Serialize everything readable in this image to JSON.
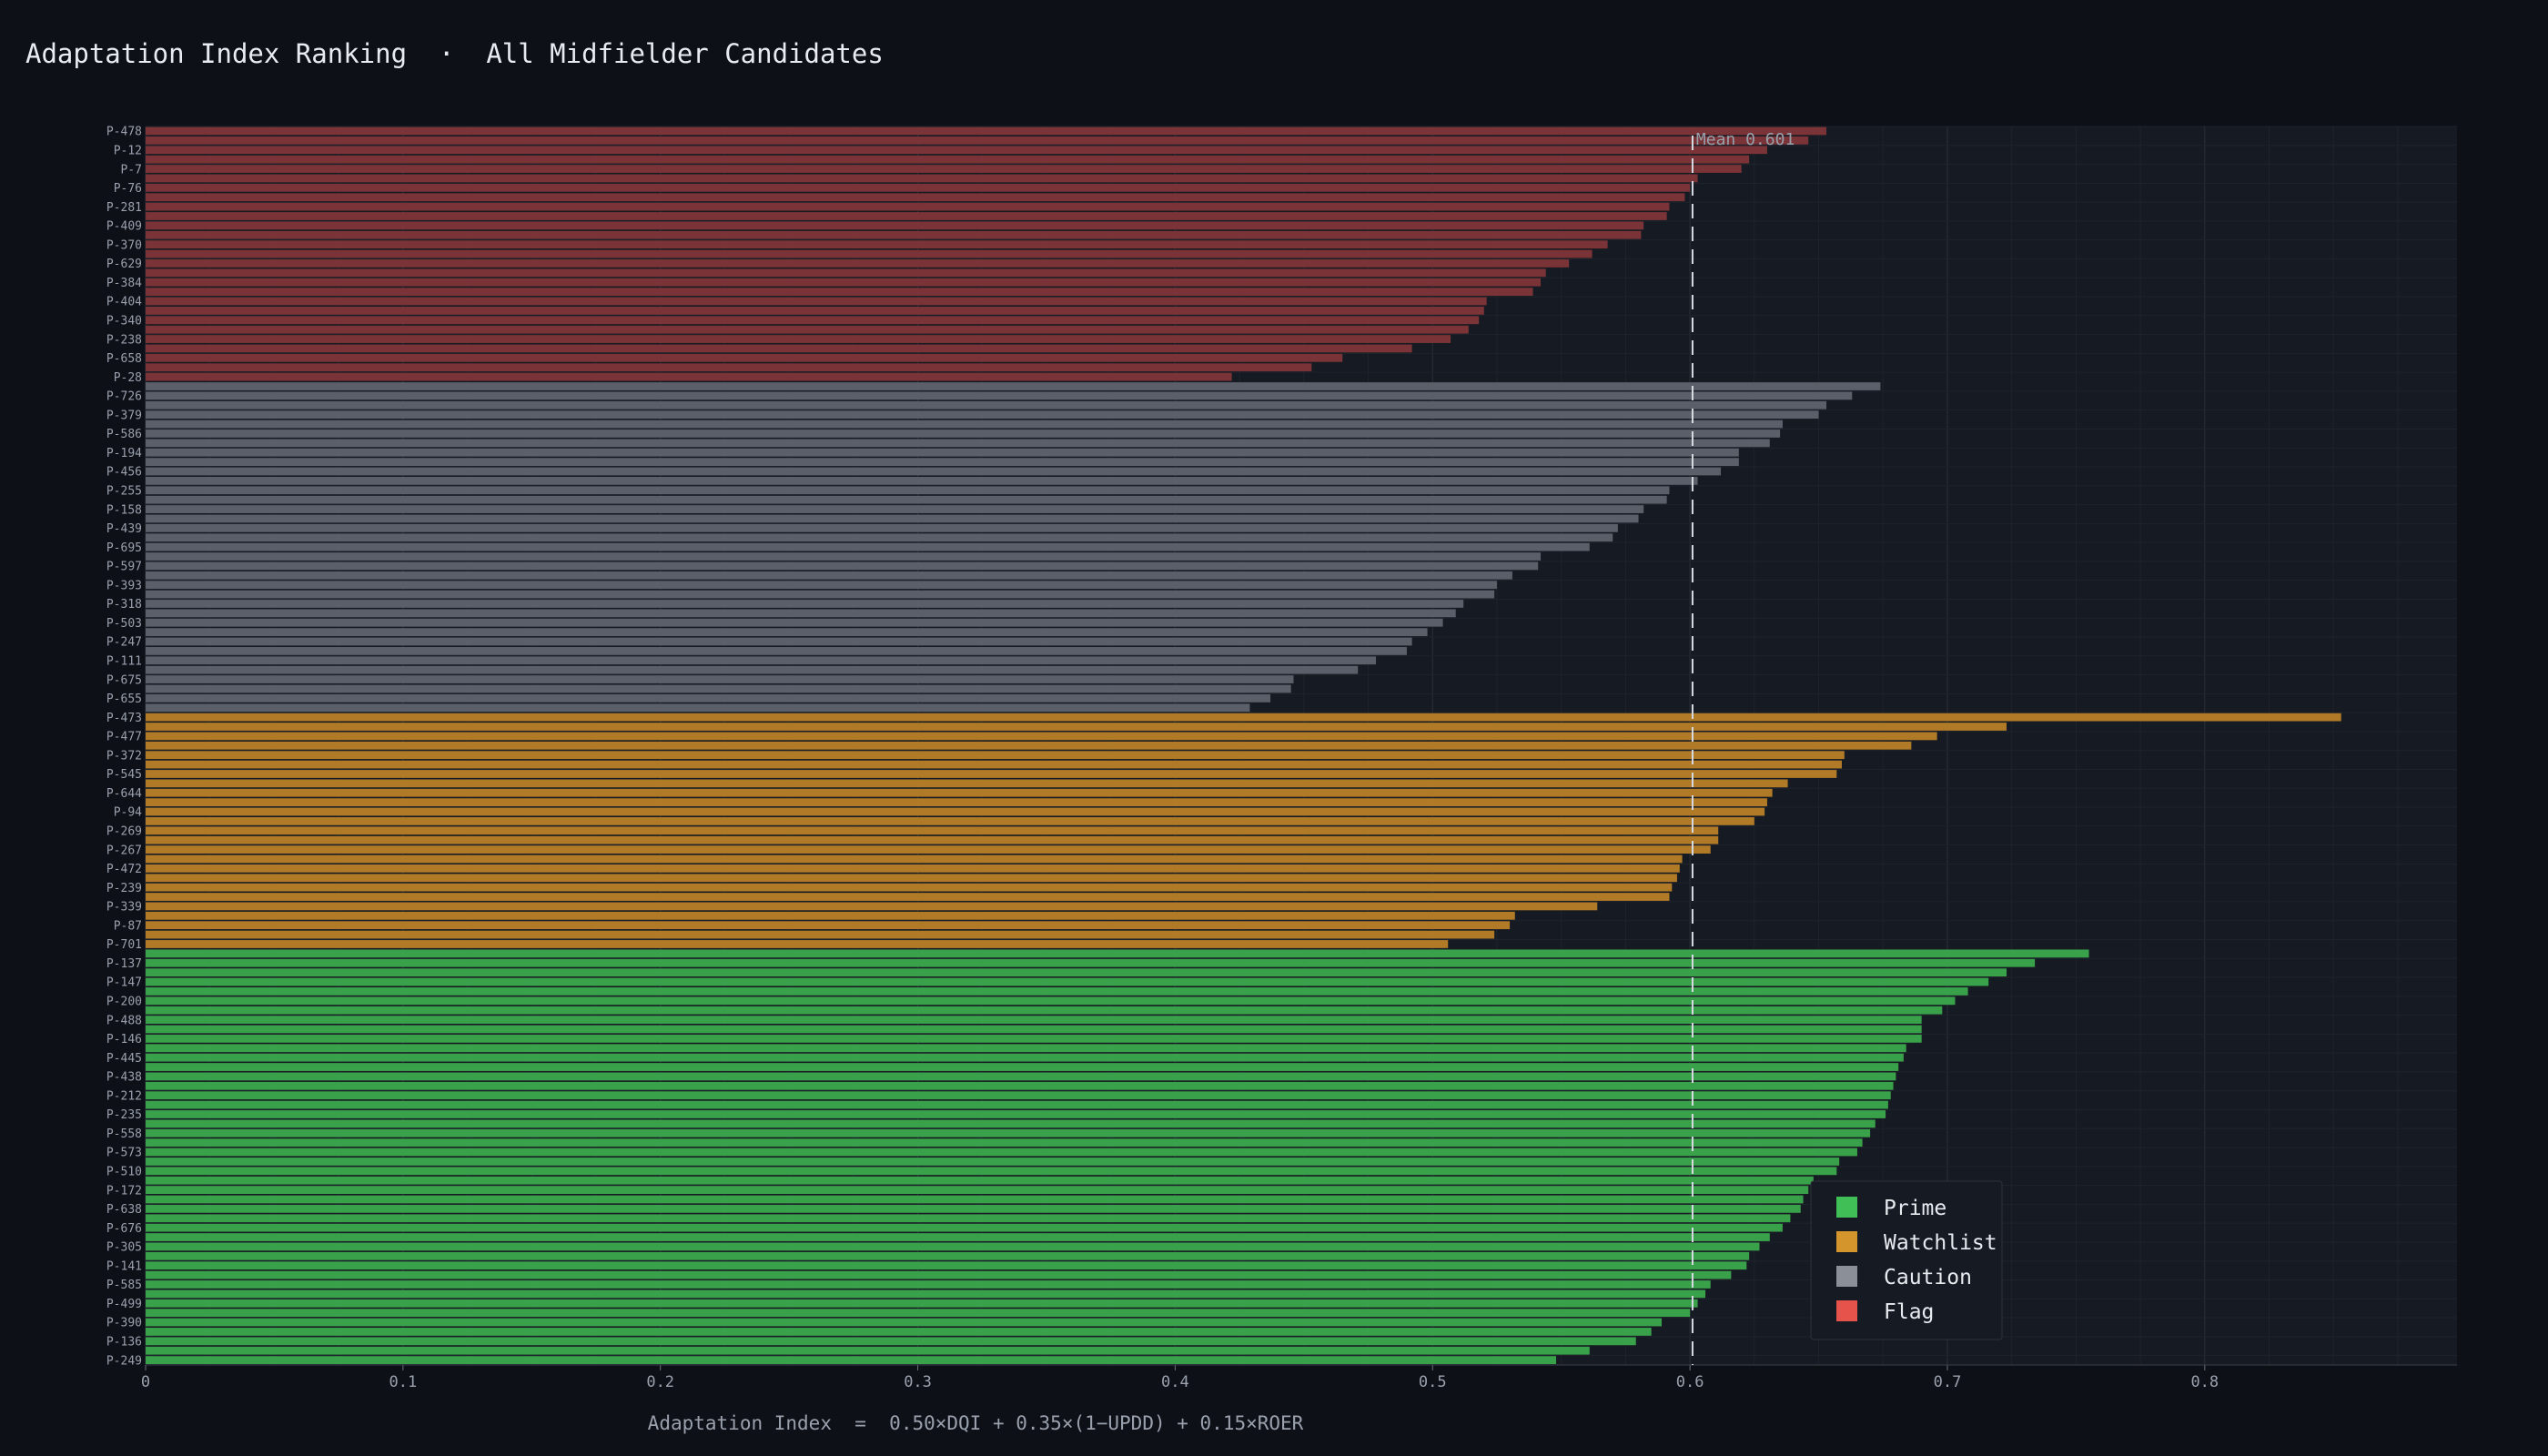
{
  "chart_data": {
    "type": "bar",
    "orientation": "horizontal",
    "title": "Adaptation Index Ranking  ·  All Midfielder Candidates",
    "xlabel": "Adaptation Index  =  0.50×DQI + 0.35×(1−UPDD) + 0.15×ROER",
    "xlim": [
      0,
      0.898
    ],
    "x_ticks": [
      0,
      0.1,
      0.2,
      0.3,
      0.4,
      0.5,
      0.6,
      0.7,
      0.8
    ],
    "x_tick_labels": [
      "0",
      "0.1",
      "0.2",
      "0.3",
      "0.4",
      "0.5",
      "0.6",
      "0.7",
      "0.8"
    ],
    "grid": true,
    "mean": {
      "value": 0.601,
      "label": "Mean 0.601"
    },
    "legend": {
      "placement": "lower-right",
      "entries": [
        {
          "name": "Prime",
          "color": "#3fbf55"
        },
        {
          "name": "Watchlist",
          "color": "#d4952c"
        },
        {
          "name": "Caution",
          "color": "#8b9098"
        },
        {
          "name": "Flag",
          "color": "#e5534b"
        }
      ]
    },
    "groups": [
      {
        "name": "Flag",
        "color": "#7a3336",
        "rows": [
          {
            "value": 0.653,
            "label": "P-478"
          },
          {
            "value": 0.646,
            "label": ""
          },
          {
            "value": 0.63,
            "label": "P-12"
          },
          {
            "value": 0.623,
            "label": ""
          },
          {
            "value": 0.62,
            "label": "P-7"
          },
          {
            "value": 0.603,
            "label": ""
          },
          {
            "value": 0.6,
            "label": "P-76"
          },
          {
            "value": 0.598,
            "label": ""
          },
          {
            "value": 0.592,
            "label": "P-281"
          },
          {
            "value": 0.591,
            "label": ""
          },
          {
            "value": 0.582,
            "label": "P-409"
          },
          {
            "value": 0.581,
            "label": ""
          },
          {
            "value": 0.568,
            "label": "P-370"
          },
          {
            "value": 0.562,
            "label": ""
          },
          {
            "value": 0.553,
            "label": "P-629"
          },
          {
            "value": 0.544,
            "label": ""
          },
          {
            "value": 0.542,
            "label": "P-384"
          },
          {
            "value": 0.539,
            "label": ""
          },
          {
            "value": 0.521,
            "label": "P-404"
          },
          {
            "value": 0.52,
            "label": ""
          },
          {
            "value": 0.518,
            "label": "P-340"
          },
          {
            "value": 0.514,
            "label": ""
          },
          {
            "value": 0.507,
            "label": "P-238"
          },
          {
            "value": 0.492,
            "label": ""
          },
          {
            "value": 0.465,
            "label": "P-658"
          },
          {
            "value": 0.453,
            "label": ""
          },
          {
            "value": 0.422,
            "label": "P-28"
          }
        ]
      },
      {
        "name": "Caution",
        "color": "#5b5f69",
        "rows": [
          {
            "value": 0.674,
            "label": ""
          },
          {
            "value": 0.663,
            "label": "P-726"
          },
          {
            "value": 0.653,
            "label": ""
          },
          {
            "value": 0.65,
            "label": "P-379"
          },
          {
            "value": 0.636,
            "label": ""
          },
          {
            "value": 0.635,
            "label": "P-586"
          },
          {
            "value": 0.631,
            "label": ""
          },
          {
            "value": 0.619,
            "label": "P-194"
          },
          {
            "value": 0.619,
            "label": ""
          },
          {
            "value": 0.612,
            "label": "P-456"
          },
          {
            "value": 0.603,
            "label": ""
          },
          {
            "value": 0.592,
            "label": "P-255"
          },
          {
            "value": 0.591,
            "label": ""
          },
          {
            "value": 0.582,
            "label": "P-158"
          },
          {
            "value": 0.58,
            "label": ""
          },
          {
            "value": 0.572,
            "label": "P-439"
          },
          {
            "value": 0.57,
            "label": ""
          },
          {
            "value": 0.561,
            "label": "P-695"
          },
          {
            "value": 0.542,
            "label": ""
          },
          {
            "value": 0.541,
            "label": "P-597"
          },
          {
            "value": 0.531,
            "label": ""
          },
          {
            "value": 0.525,
            "label": "P-393"
          },
          {
            "value": 0.524,
            "label": ""
          },
          {
            "value": 0.512,
            "label": "P-318"
          },
          {
            "value": 0.509,
            "label": ""
          },
          {
            "value": 0.504,
            "label": "P-503"
          },
          {
            "value": 0.498,
            "label": ""
          },
          {
            "value": 0.492,
            "label": "P-247"
          },
          {
            "value": 0.49,
            "label": ""
          },
          {
            "value": 0.478,
            "label": "P-111"
          },
          {
            "value": 0.471,
            "label": ""
          },
          {
            "value": 0.446,
            "label": "P-675"
          },
          {
            "value": 0.445,
            "label": ""
          },
          {
            "value": 0.437,
            "label": "P-655"
          },
          {
            "value": 0.429,
            "label": ""
          }
        ]
      },
      {
        "name": "Watchlist",
        "color": "#b07a27",
        "rows": [
          {
            "value": 0.853,
            "label": "P-473"
          },
          {
            "value": 0.723,
            "label": ""
          },
          {
            "value": 0.696,
            "label": "P-477"
          },
          {
            "value": 0.686,
            "label": ""
          },
          {
            "value": 0.66,
            "label": "P-372"
          },
          {
            "value": 0.659,
            "label": ""
          },
          {
            "value": 0.657,
            "label": "P-545"
          },
          {
            "value": 0.638,
            "label": ""
          },
          {
            "value": 0.632,
            "label": "P-644"
          },
          {
            "value": 0.63,
            "label": ""
          },
          {
            "value": 0.629,
            "label": "P-94"
          },
          {
            "value": 0.625,
            "label": ""
          },
          {
            "value": 0.611,
            "label": "P-269"
          },
          {
            "value": 0.611,
            "label": ""
          },
          {
            "value": 0.608,
            "label": "P-267"
          },
          {
            "value": 0.597,
            "label": ""
          },
          {
            "value": 0.596,
            "label": "P-472"
          },
          {
            "value": 0.595,
            "label": ""
          },
          {
            "value": 0.593,
            "label": "P-239"
          },
          {
            "value": 0.592,
            "label": ""
          },
          {
            "value": 0.564,
            "label": "P-339"
          },
          {
            "value": 0.532,
            "label": ""
          },
          {
            "value": 0.53,
            "label": "P-87"
          },
          {
            "value": 0.524,
            "label": ""
          },
          {
            "value": 0.506,
            "label": "P-701"
          }
        ]
      },
      {
        "name": "Prime",
        "color": "#3aa14b",
        "rows": [
          {
            "value": 0.755,
            "label": ""
          },
          {
            "value": 0.734,
            "label": "P-137"
          },
          {
            "value": 0.723,
            "label": ""
          },
          {
            "value": 0.716,
            "label": "P-147"
          },
          {
            "value": 0.708,
            "label": ""
          },
          {
            "value": 0.703,
            "label": "P-200"
          },
          {
            "value": 0.698,
            "label": ""
          },
          {
            "value": 0.69,
            "label": "P-488"
          },
          {
            "value": 0.69,
            "label": ""
          },
          {
            "value": 0.69,
            "label": "P-146"
          },
          {
            "value": 0.684,
            "label": ""
          },
          {
            "value": 0.683,
            "label": "P-445"
          },
          {
            "value": 0.681,
            "label": ""
          },
          {
            "value": 0.68,
            "label": "P-438"
          },
          {
            "value": 0.679,
            "label": ""
          },
          {
            "value": 0.678,
            "label": "P-212"
          },
          {
            "value": 0.677,
            "label": ""
          },
          {
            "value": 0.676,
            "label": "P-235"
          },
          {
            "value": 0.672,
            "label": ""
          },
          {
            "value": 0.67,
            "label": "P-558"
          },
          {
            "value": 0.667,
            "label": ""
          },
          {
            "value": 0.665,
            "label": "P-573"
          },
          {
            "value": 0.658,
            "label": ""
          },
          {
            "value": 0.657,
            "label": "P-510"
          },
          {
            "value": 0.648,
            "label": ""
          },
          {
            "value": 0.646,
            "label": "P-172"
          },
          {
            "value": 0.644,
            "label": ""
          },
          {
            "value": 0.643,
            "label": "P-638"
          },
          {
            "value": 0.639,
            "label": ""
          },
          {
            "value": 0.636,
            "label": "P-676"
          },
          {
            "value": 0.631,
            "label": ""
          },
          {
            "value": 0.627,
            "label": "P-305"
          },
          {
            "value": 0.623,
            "label": ""
          },
          {
            "value": 0.622,
            "label": "P-141"
          },
          {
            "value": 0.616,
            "label": ""
          },
          {
            "value": 0.608,
            "label": "P-585"
          },
          {
            "value": 0.606,
            "label": ""
          },
          {
            "value": 0.603,
            "label": "P-499"
          },
          {
            "value": 0.6,
            "label": ""
          },
          {
            "value": 0.589,
            "label": "P-390"
          },
          {
            "value": 0.585,
            "label": ""
          },
          {
            "value": 0.579,
            "label": "P-136"
          },
          {
            "value": 0.561,
            "label": ""
          },
          {
            "value": 0.548,
            "label": "P-249"
          }
        ]
      }
    ]
  }
}
